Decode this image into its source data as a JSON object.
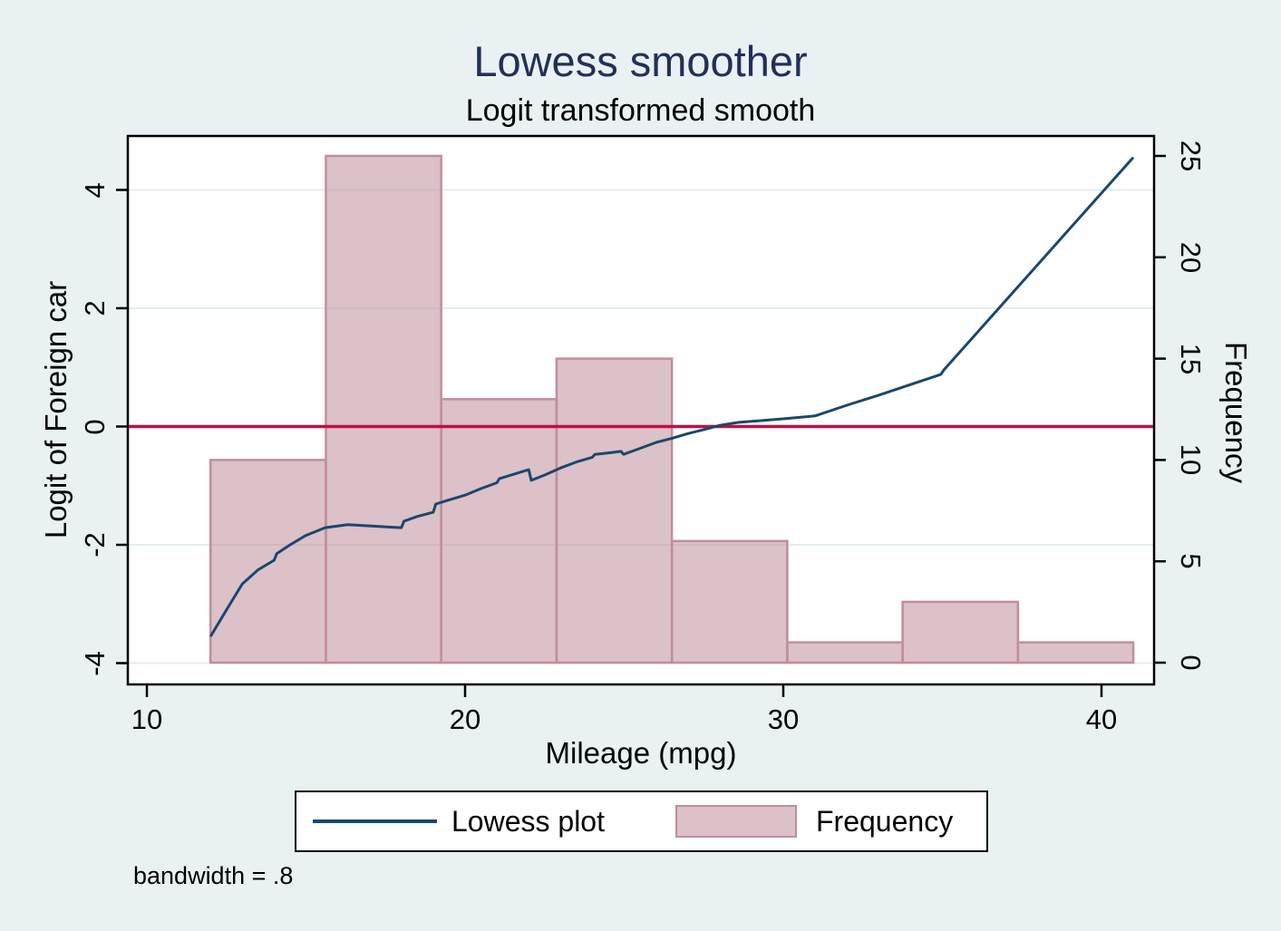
{
  "title": "Lowess smoother",
  "subtitle": "Logit transformed smooth",
  "note": "bandwidth = .8",
  "colors": {
    "background": "#e9f1f3",
    "plot_background": "#ffffff",
    "gridline": "#e3edf0",
    "frame": "#000000",
    "title": "#223059",
    "lowess_line": "#1a476f",
    "reference_line": "#c10e47",
    "bar_fill": "#c08e9a",
    "bar_border": "#c08e9a"
  },
  "legend": {
    "items": [
      {
        "label": "Lowess plot",
        "type": "line"
      },
      {
        "label": "Frequency",
        "type": "bar"
      }
    ]
  },
  "axes": {
    "x": {
      "title": "Mileage (mpg)",
      "tick_values": [
        10,
        20,
        30,
        40
      ],
      "tick_labels": [
        "10",
        "20",
        "30",
        "40"
      ]
    },
    "left": {
      "title": "Logit of Foreign car",
      "tick_values": [
        4,
        2,
        0,
        -2,
        -4
      ],
      "tick_labels": [
        "4",
        "2",
        "0",
        "-2",
        "-4"
      ]
    },
    "right": {
      "title": "Frequency",
      "tick_values": [
        0,
        5,
        10,
        15,
        20,
        25
      ],
      "tick_labels": [
        "0",
        "5",
        "10",
        "15",
        "20",
        "25"
      ]
    }
  },
  "chart_data": {
    "type": "line",
    "title": "Lowess smoother",
    "subtitle": "Logit transformed smooth",
    "xlabel": "Mileage (mpg)",
    "ylabel_left": "Logit of Foreign car",
    "ylabel_right": "Frequency",
    "xlim": [
      9.4,
      41.6
    ],
    "left_ylim": [
      -4.4,
      4.9
    ],
    "right_ylim": [
      0,
      27
    ],
    "grid": "horizontal, at left-axis ticks",
    "legend_position": "bottom center",
    "reference_line": {
      "axis": "left",
      "value": 0
    },
    "series": [
      {
        "name": "Lowess plot",
        "type": "line",
        "axis": "left",
        "points": [
          [
            12.0,
            -3.55
          ],
          [
            12.5,
            -3.1
          ],
          [
            13.0,
            -2.66
          ],
          [
            13.5,
            -2.42
          ],
          [
            14.0,
            -2.26
          ],
          [
            14.08,
            -2.15
          ],
          [
            14.5,
            -2.0
          ],
          [
            15.0,
            -1.84
          ],
          [
            15.6,
            -1.71
          ],
          [
            16.3,
            -1.66
          ],
          [
            17.0,
            -1.68
          ],
          [
            17.6,
            -1.7
          ],
          [
            18.0,
            -1.71
          ],
          [
            18.08,
            -1.6
          ],
          [
            18.5,
            -1.52
          ],
          [
            19.0,
            -1.45
          ],
          [
            19.08,
            -1.31
          ],
          [
            19.5,
            -1.24
          ],
          [
            20.0,
            -1.16
          ],
          [
            20.5,
            -1.05
          ],
          [
            21.0,
            -0.95
          ],
          [
            21.08,
            -0.88
          ],
          [
            21.5,
            -0.81
          ],
          [
            22.0,
            -0.73
          ],
          [
            22.08,
            -0.91
          ],
          [
            22.5,
            -0.82
          ],
          [
            23.0,
            -0.7
          ],
          [
            23.5,
            -0.6
          ],
          [
            24.0,
            -0.52
          ],
          [
            24.08,
            -0.47
          ],
          [
            24.6,
            -0.44
          ],
          [
            24.9,
            -0.42
          ],
          [
            24.98,
            -0.47
          ],
          [
            25.4,
            -0.39
          ],
          [
            26.0,
            -0.27
          ],
          [
            26.5,
            -0.2
          ],
          [
            27.0,
            -0.12
          ],
          [
            27.6,
            -0.04
          ],
          [
            28.0,
            0.02
          ],
          [
            28.6,
            0.07
          ],
          [
            29.3,
            0.1
          ],
          [
            30.0,
            0.13
          ],
          [
            31.0,
            0.18
          ],
          [
            32.0,
            0.36
          ],
          [
            33.0,
            0.53
          ],
          [
            34.0,
            0.71
          ],
          [
            34.95,
            0.88
          ],
          [
            35.05,
            0.96
          ],
          [
            38.0,
            2.74
          ],
          [
            41.0,
            4.55
          ]
        ]
      },
      {
        "name": "Frequency",
        "type": "histogram",
        "axis": "right",
        "bin_start": 12,
        "bin_width": 3.625,
        "bin_edges": [
          12,
          15.625,
          19.25,
          22.875,
          26.5,
          30.125,
          33.75,
          37.375,
          41
        ],
        "frequencies": [
          10,
          25,
          13,
          15,
          6,
          1,
          3,
          1
        ]
      }
    ]
  }
}
